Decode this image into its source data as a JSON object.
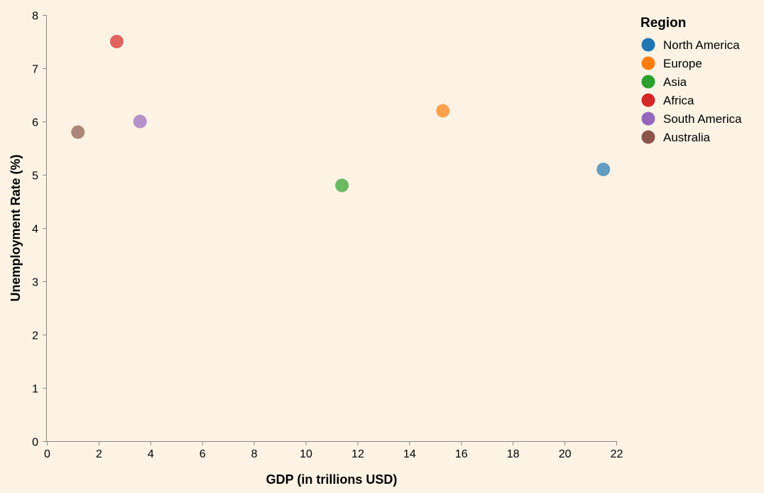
{
  "chart_data": {
    "type": "scatter",
    "xlabel": "GDP (in trillions USD)",
    "ylabel": "Unemployment Rate (%)",
    "xlim": [
      0,
      22
    ],
    "ylim": [
      0,
      8
    ],
    "x_ticks": [
      0,
      2,
      4,
      6,
      8,
      10,
      12,
      14,
      16,
      18,
      20,
      22
    ],
    "y_ticks": [
      0,
      1,
      2,
      3,
      4,
      5,
      6,
      7,
      8
    ],
    "grid": false,
    "legend": {
      "title": "Region",
      "placement": "right"
    },
    "series": [
      {
        "name": "North America",
        "color": "#1f77b4",
        "x": 21.5,
        "y": 5.1
      },
      {
        "name": "Europe",
        "color": "#ff7f0e",
        "x": 15.3,
        "y": 6.2
      },
      {
        "name": "Asia",
        "color": "#2ca02c",
        "x": 11.4,
        "y": 4.8
      },
      {
        "name": "Africa",
        "color": "#d62728",
        "x": 2.7,
        "y": 7.5
      },
      {
        "name": "South America",
        "color": "#9467bd",
        "x": 3.6,
        "y": 6.0
      },
      {
        "name": "Australia",
        "color": "#8c564b",
        "x": 1.2,
        "y": 5.8
      }
    ]
  }
}
